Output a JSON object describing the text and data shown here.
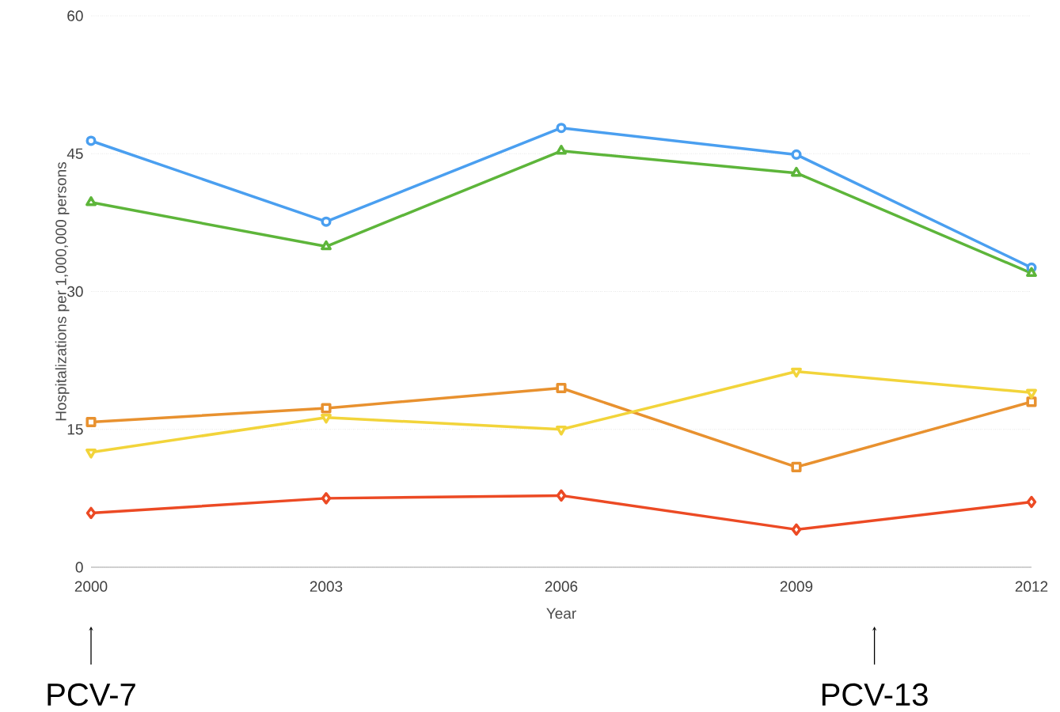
{
  "chart_data": {
    "type": "line",
    "xlabel": "Year",
    "ylabel": "Hospitalizations per 1,000,000 persons",
    "x": [
      2000,
      2003,
      2006,
      2009,
      2012
    ],
    "series": [
      {
        "color": "#4a9ff0",
        "marker": "circle",
        "values": [
          46.4,
          37.6,
          47.8,
          44.9,
          32.6
        ]
      },
      {
        "color": "#5db53a",
        "marker": "triangle",
        "values": [
          39.7,
          34.9,
          45.3,
          42.9,
          32.0
        ]
      },
      {
        "color": "#e8912f",
        "marker": "square",
        "values": [
          15.8,
          17.3,
          19.5,
          10.9,
          18.0
        ]
      },
      {
        "color": "#f2d43a",
        "marker": "triangle down",
        "values": [
          12.5,
          16.3,
          15.0,
          21.3,
          19.0
        ]
      },
      {
        "color": "#ec4a24",
        "marker": "diamond",
        "values": [
          5.9,
          7.5,
          7.8,
          4.1,
          7.1
        ]
      }
    ],
    "xlim": [
      2000,
      2012
    ],
    "xticks": [
      2000,
      2003,
      2006,
      2009,
      2012
    ],
    "ylim": [
      0,
      60
    ],
    "yticks": [
      0,
      15,
      30,
      45,
      60
    ],
    "grid": "y",
    "line_style": "solid",
    "annotations": [
      "PCV-7",
      "PCV-13"
    ]
  }
}
